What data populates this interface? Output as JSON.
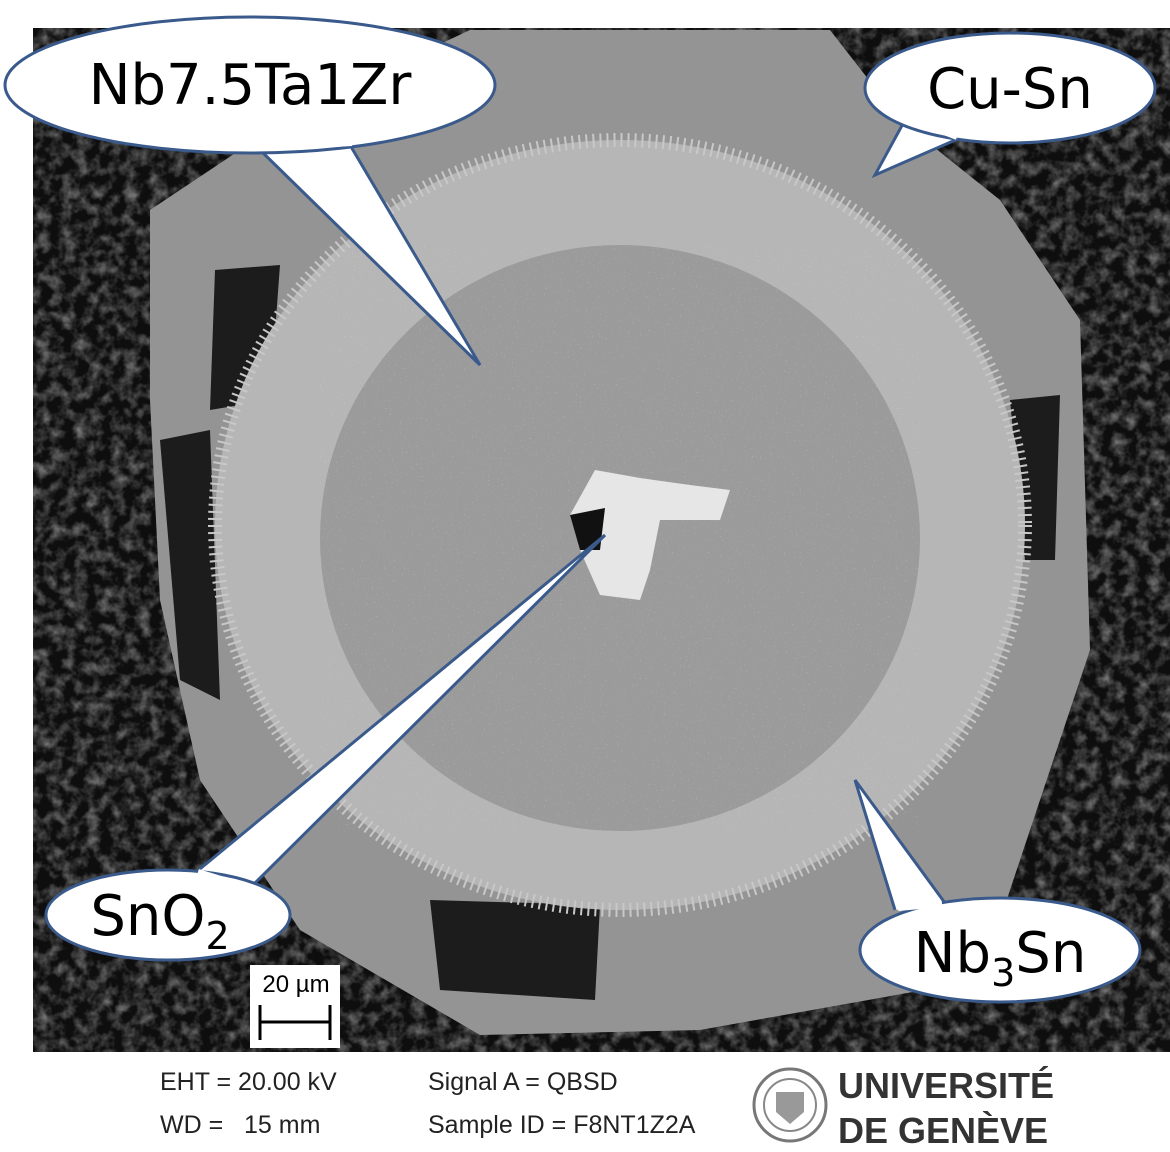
{
  "callouts": [
    {
      "text": "Nb7.5Ta1Zr"
    },
    {
      "text": "Cu-Sn"
    },
    {
      "text": "SnO",
      "subscript": "2"
    },
    {
      "text": "Nb",
      "subscript": "3",
      "suffix": "Sn"
    }
  ],
  "scale_bar": {
    "label": "20 µm"
  },
  "footer": {
    "eht": "EHT = 20.00 kV",
    "wd": "WD =   15 mm",
    "signal": "Signal A = QBSD",
    "sample": "Sample ID = F8NT1Z2A",
    "logo_line1": "UNIVERSITÉ",
    "logo_line2": "DE GENÈVE"
  }
}
